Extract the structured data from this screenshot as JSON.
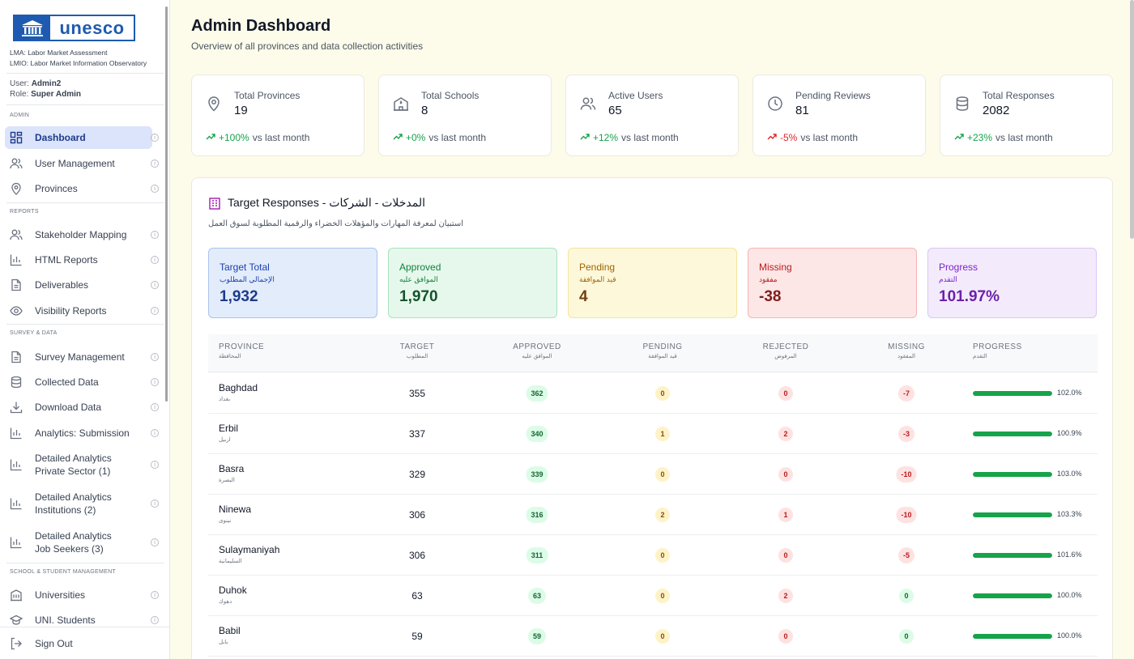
{
  "sidebar": {
    "logo_text": "unesco",
    "abbr_lma": "LMA: Labor Market Assessment",
    "abbr_lmio": "LMIO: Labor Market Information Observatory",
    "user_label": "User:",
    "user_name": "Admin2",
    "role_label": "Role:",
    "role_name": "Super Admin",
    "sections": {
      "admin": "ADMIN",
      "reports": "REPORTS",
      "survey": "SURVEY & DATA",
      "school": "SCHOOL & STUDENT MANAGEMENT"
    },
    "items": {
      "dashboard": "Dashboard",
      "user_management": "User Management",
      "provinces": "Provinces",
      "stakeholder_mapping": "Stakeholder Mapping",
      "html_reports": "HTML Reports",
      "deliverables": "Deliverables",
      "visibility_reports": "Visibility Reports",
      "survey_management": "Survey Management",
      "collected_data": "Collected Data",
      "download_data": "Download Data",
      "analytics_submission": "Analytics: Submission",
      "detailed_private_1": "Detailed Analytics",
      "detailed_private_2": "Private Sector (1)",
      "detailed_inst_1": "Detailed Analytics",
      "detailed_inst_2": "Institutions (2)",
      "detailed_job_1": "Detailed Analytics",
      "detailed_job_2": "Job Seekers (3)",
      "universities": "Universities",
      "uni_students": "UNI. Students",
      "sign_out": "Sign Out"
    }
  },
  "header": {
    "title": "Admin Dashboard",
    "subtitle": "Overview of all provinces and data collection activities"
  },
  "stats": [
    {
      "label": "Total Provinces",
      "value": "19",
      "trend": "+100%",
      "trend_suffix": "vs last month",
      "dir": "up"
    },
    {
      "label": "Total Schools",
      "value": "8",
      "trend": "+0%",
      "trend_suffix": "vs last month",
      "dir": "up"
    },
    {
      "label": "Active Users",
      "value": "65",
      "trend": "+12%",
      "trend_suffix": "vs last month",
      "dir": "up"
    },
    {
      "label": "Pending Reviews",
      "value": "81",
      "trend": "-5%",
      "trend_suffix": "vs last month",
      "dir": "down"
    },
    {
      "label": "Total Responses",
      "value": "2082",
      "trend": "+23%",
      "trend_suffix": "vs last month",
      "dir": "up"
    }
  ],
  "panel": {
    "title": "Target Responses - المدخلات - الشركات",
    "subtitle": "استبيان لمعرفة المهارات والمؤهلات الخضراء والرقمية المطلوبة لسوق العمل",
    "summary": [
      {
        "en": "Target Total",
        "ar": "الإجمالي المطلوب",
        "value": "1,932"
      },
      {
        "en": "Approved",
        "ar": "الموافق عليه",
        "value": "1,970"
      },
      {
        "en": "Pending",
        "ar": "قيد الموافقة",
        "value": "4"
      },
      {
        "en": "Missing",
        "ar": "مفقود",
        "value": "-38"
      },
      {
        "en": "Progress",
        "ar": "التقدم",
        "value": "101.97%"
      }
    ],
    "columns": [
      {
        "en": "PROVINCE",
        "ar": "المحافظة"
      },
      {
        "en": "TARGET",
        "ar": "المطلوب"
      },
      {
        "en": "APPROVED",
        "ar": "الموافق عليه"
      },
      {
        "en": "PENDING",
        "ar": "قيد الموافقة"
      },
      {
        "en": "REJECTED",
        "ar": "المرفوض"
      },
      {
        "en": "MISSING",
        "ar": "المفقود"
      },
      {
        "en": "PROGRESS",
        "ar": "التقدم"
      }
    ],
    "rows": [
      {
        "name": "Baghdad",
        "ar": "بغداد",
        "target": "355",
        "approved": "362",
        "pending": "0",
        "rejected": "0",
        "missing": "-7",
        "progress": "102.0%",
        "progress_value": 102.0
      },
      {
        "name": "Erbil",
        "ar": "اربيل",
        "target": "337",
        "approved": "340",
        "pending": "1",
        "rejected": "2",
        "missing": "-3",
        "progress": "100.9%",
        "progress_value": 100.9
      },
      {
        "name": "Basra",
        "ar": "البصرة",
        "target": "329",
        "approved": "339",
        "pending": "0",
        "rejected": "0",
        "missing": "-10",
        "progress": "103.0%",
        "progress_value": 103.0
      },
      {
        "name": "Ninewa",
        "ar": "نينوى",
        "target": "306",
        "approved": "316",
        "pending": "2",
        "rejected": "1",
        "missing": "-10",
        "progress": "103.3%",
        "progress_value": 103.3
      },
      {
        "name": "Sulaymaniyah",
        "ar": "السليمانية",
        "target": "306",
        "approved": "311",
        "pending": "0",
        "rejected": "0",
        "missing": "-5",
        "progress": "101.6%",
        "progress_value": 101.6
      },
      {
        "name": "Duhok",
        "ar": "دهوك",
        "target": "63",
        "approved": "63",
        "pending": "0",
        "rejected": "2",
        "missing": "0",
        "progress": "100.0%",
        "progress_value": 100.0
      },
      {
        "name": "Babil",
        "ar": "بابل",
        "target": "59",
        "approved": "59",
        "pending": "0",
        "rejected": "0",
        "missing": "0",
        "progress": "100.0%",
        "progress_value": 100.0
      }
    ]
  },
  "colors": {
    "accent": "#1e3a8a",
    "brand": "#1e5bb0",
    "success": "#16a34a",
    "danger": "#dc2626",
    "page_bg": "#fdfbe9"
  },
  "icons": {
    "stats": [
      "map-pin-icon",
      "school-icon",
      "users-icon",
      "clock-icon",
      "database-icon"
    ],
    "panel": "building-icon"
  }
}
